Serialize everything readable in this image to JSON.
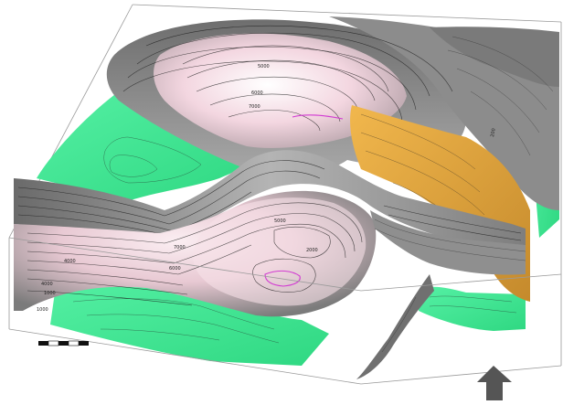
{
  "colors": {
    "green_surface": "#3ee892",
    "pink_surface": "#f3d6e0",
    "gray_surface": "#8a8a8a",
    "orange_fault": "#e0a640",
    "magenta_contour": "#d23cd2",
    "box_outline": "#9a9a9a",
    "north_arrow": "#555555",
    "scale_bar_dark": "#111111",
    "scale_bar_light": "#ffffff"
  },
  "icons": {
    "north_arrow": "north-arrow-icon",
    "scale_bar": "scale-bar"
  },
  "contour_labels": {
    "top_right_peak": "5000",
    "upper_left_a": "6000",
    "upper_left_b": "7000",
    "right_edge": "200",
    "middle_band": "5000",
    "left_a": "7000",
    "left_b": "6000",
    "left_c": "4000",
    "lower_left_a": "4000",
    "lower_left_b": "1000",
    "lower_left_c": "1000",
    "center_right": "2000"
  }
}
